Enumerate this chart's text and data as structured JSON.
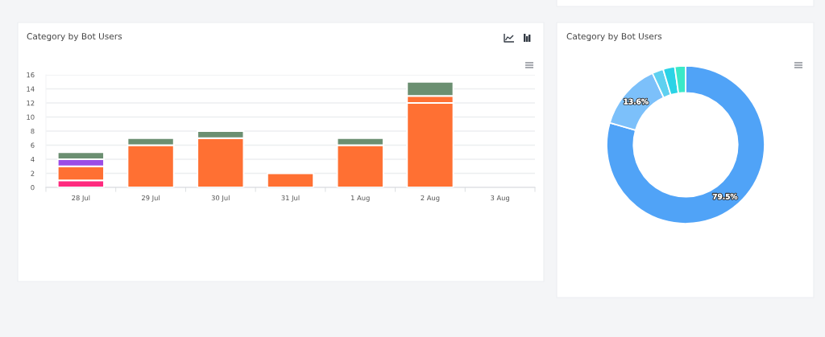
{
  "chart_data": [
    {
      "type": "bar",
      "title": "Category by Bot Users",
      "categories": [
        "28 Jul",
        "29 Jul",
        "30 Jul",
        "31 Jul",
        "1 Aug",
        "2 Aug",
        "3 Aug"
      ],
      "series": [
        {
          "color": "#fe2a7e",
          "values": [
            1,
            null,
            null,
            null,
            null,
            null,
            null
          ]
        },
        {
          "color": "#ff7033",
          "values": [
            2,
            6,
            7,
            2,
            6,
            12,
            null
          ]
        },
        {
          "color": "#ff7033",
          "values": [
            null,
            null,
            null,
            null,
            null,
            1,
            null
          ]
        },
        {
          "color": "#9b4de6",
          "values": [
            1,
            null,
            null,
            null,
            null,
            null,
            null
          ]
        },
        {
          "color": "#6b8f71",
          "values": [
            1,
            1,
            1,
            null,
            1,
            2,
            null
          ]
        }
      ],
      "stacked": true,
      "ylim": [
        0,
        16
      ],
      "yticks": [
        0,
        2,
        4,
        6,
        8,
        10,
        12,
        14,
        16
      ],
      "grid": "y"
    },
    {
      "type": "donut",
      "title": "Category by Bot Users",
      "categories": [
        null,
        null,
        null,
        null,
        null
      ],
      "values": [
        79.5,
        13.6,
        2.3,
        2.4,
        2.2
      ],
      "colors": [
        "#50a3f7",
        "#7cc0fa",
        "#5ed0f0",
        "#2ad3e6",
        "#3be9c8"
      ],
      "value_labels": [
        "79.5%",
        "13.6%",
        null,
        null,
        null
      ]
    }
  ]
}
